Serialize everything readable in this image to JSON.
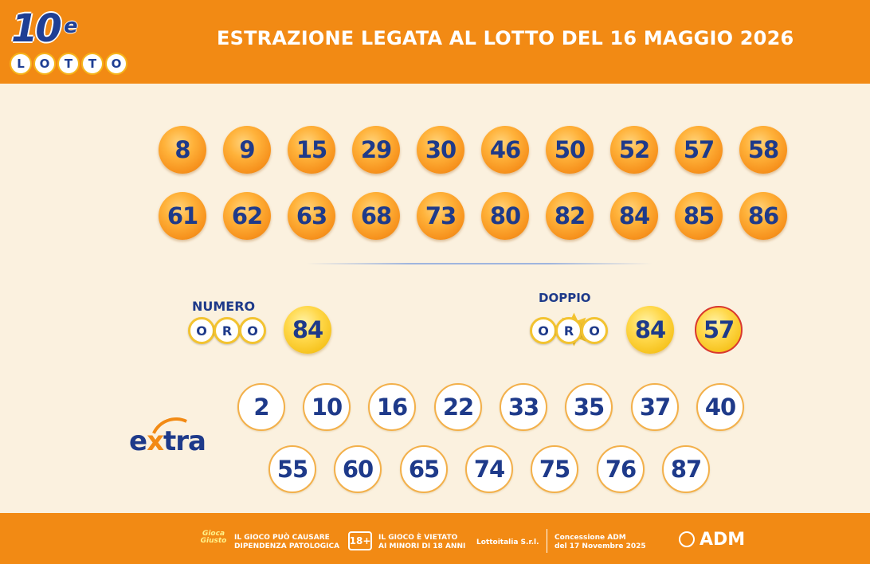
{
  "header": {
    "logo_number": "10",
    "logo_e": "e",
    "logo_lotto": [
      "L",
      "O",
      "T",
      "T",
      "O"
    ],
    "title": "ESTRAZIONE LEGATA AL LOTTO DEL 16 MAGGIO 2026"
  },
  "winning_numbers": {
    "row1": [
      "8",
      "9",
      "15",
      "29",
      "30",
      "46",
      "50",
      "52",
      "57",
      "58"
    ],
    "row2": [
      "61",
      "62",
      "63",
      "68",
      "73",
      "80",
      "82",
      "84",
      "85",
      "86"
    ]
  },
  "numero_oro": {
    "label": "NUMERO",
    "badge": [
      "O",
      "R",
      "O"
    ],
    "value": "84"
  },
  "doppio_oro": {
    "label": "DOPPIO",
    "badge": [
      "O",
      "R",
      "O"
    ],
    "values": [
      "84",
      "57"
    ]
  },
  "extra": {
    "logo_e": "e",
    "logo_x": "x",
    "logo_rest": "tra",
    "row1": [
      "2",
      "10",
      "16",
      "22",
      "33",
      "35",
      "37",
      "40"
    ],
    "row2": [
      "55",
      "60",
      "65",
      "74",
      "75",
      "76",
      "87"
    ]
  },
  "footer": {
    "gioco_logo": "Gioca Giusto",
    "warning_line1": "IL GIOCO PUÒ CAUSARE",
    "warning_line2": "DIPENDENZA PATOLOGICA",
    "age_badge": "18+",
    "minors_line1": "IL GIOCO È VIETATO",
    "minors_line2": "AI MINORI DI 18 ANNI",
    "operator": "Lottoitalia S.r.l.",
    "concession_line1": "Concessione ADM",
    "concession_line2": "del 17 Novembre 2025",
    "adm": "ADM"
  },
  "colors": {
    "header_orange": "#f28a14",
    "background": "#fbf1df",
    "number_blue": "#1e3a8a"
  }
}
